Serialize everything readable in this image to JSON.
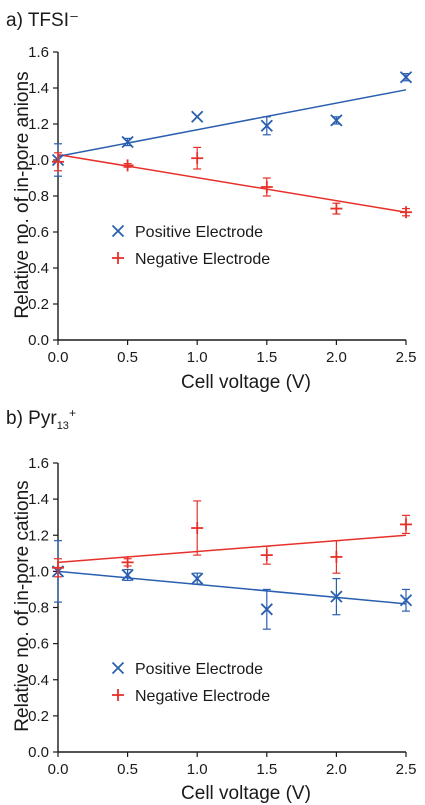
{
  "chart_data": [
    {
      "type": "scatter",
      "title": "a) TFSI⁻",
      "xlabel": "Cell voltage (V)",
      "ylabel": "Relative no. of in-pore anions",
      "xlim": [
        0.0,
        2.5
      ],
      "ylim": [
        0.0,
        1.6
      ],
      "xticks": [
        "0.0",
        "0.5",
        "1.0",
        "1.5",
        "2.0",
        "2.5"
      ],
      "yticks": [
        "0.0",
        "0.2",
        "0.4",
        "0.6",
        "0.8",
        "1.0",
        "1.2",
        "1.4",
        "1.6"
      ],
      "grid": false,
      "legend_position": "center-left",
      "series": [
        {
          "name": "Positive Electrode",
          "marker": "x",
          "color": "#2a5fb0",
          "x": [
            0.0,
            0.5,
            1.0,
            1.5,
            2.0,
            2.5
          ],
          "y": [
            1.0,
            1.1,
            1.24,
            1.19,
            1.22,
            1.46
          ],
          "err": [
            0.09,
            0.02,
            0.0,
            0.05,
            0.02,
            0.02
          ],
          "fit": [
            [
              0.0,
              1.02
            ],
            [
              2.5,
              1.39
            ]
          ]
        },
        {
          "name": "Negative Electrode",
          "marker": "+",
          "color": "#e8302a",
          "x": [
            0.0,
            0.5,
            1.0,
            1.5,
            2.0,
            2.5
          ],
          "y": [
            0.99,
            0.97,
            1.01,
            0.85,
            0.73,
            0.71
          ],
          "err": [
            0.05,
            0.01,
            0.06,
            0.05,
            0.03,
            0.02
          ],
          "fit": [
            [
              0.0,
              1.03
            ],
            [
              2.5,
              0.71
            ]
          ]
        }
      ]
    },
    {
      "type": "scatter",
      "title": "b) Pyr",
      "title_sub": "13",
      "title_sup": "+",
      "xlabel": "Cell voltage (V)",
      "ylabel": "Relative no. of in-pore cations",
      "xlim": [
        0.0,
        2.5
      ],
      "ylim": [
        0.0,
        1.6
      ],
      "xticks": [
        "0.0",
        "0.5",
        "1.0",
        "1.5",
        "2.0",
        "2.5"
      ],
      "yticks": [
        "0.0",
        "0.2",
        "0.4",
        "0.6",
        "0.8",
        "1.0",
        "1.2",
        "1.4",
        "1.6"
      ],
      "grid": false,
      "legend_position": "bottom-left",
      "series": [
        {
          "name": "Positive Electrode",
          "marker": "x",
          "color": "#2a5fb0",
          "x": [
            0.0,
            0.5,
            1.0,
            1.5,
            2.0,
            2.5
          ],
          "y": [
            1.0,
            0.98,
            0.96,
            0.79,
            0.86,
            0.84
          ],
          "err": [
            0.17,
            0.03,
            0.03,
            0.11,
            0.1,
            0.06
          ],
          "fit": [
            [
              0.0,
              1.0
            ],
            [
              2.5,
              0.82
            ]
          ]
        },
        {
          "name": "Negative Electrode",
          "marker": "+",
          "color": "#e8302a",
          "x": [
            0.0,
            0.5,
            1.0,
            1.5,
            2.0,
            2.5
          ],
          "y": [
            1.02,
            1.05,
            1.24,
            1.09,
            1.08,
            1.26
          ],
          "err": [
            0.05,
            0.02,
            0.15,
            0.05,
            0.09,
            0.05
          ],
          "fit": [
            [
              0.0,
              1.05
            ],
            [
              2.5,
              1.2
            ]
          ]
        }
      ]
    }
  ]
}
